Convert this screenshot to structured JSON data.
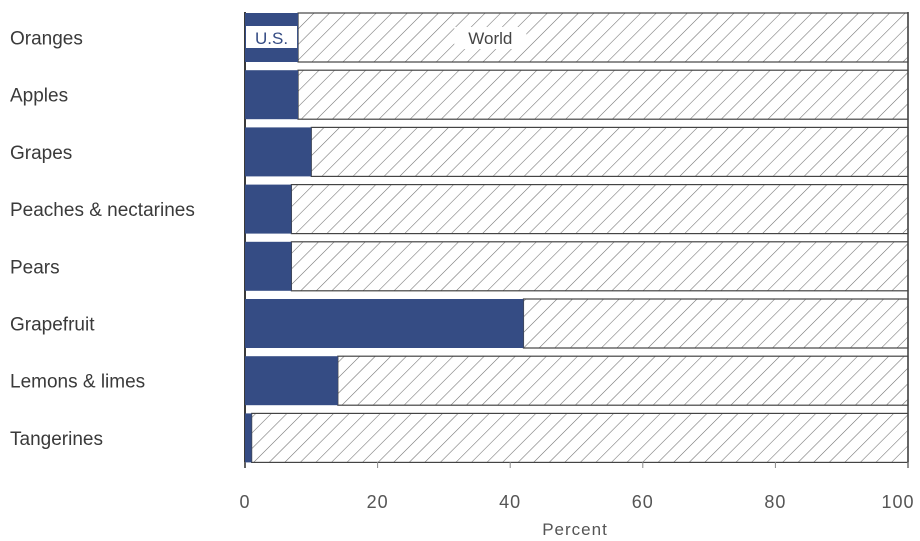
{
  "chart_data": {
    "type": "bar",
    "orientation": "horizontal",
    "stacked": true,
    "categories": [
      "Oranges",
      "Apples",
      "Grapes",
      "Peaches & nectarines",
      "Pears",
      "Grapefruit",
      "Lemons & limes",
      "Tangerines"
    ],
    "series": [
      {
        "name": "U.S.",
        "values": [
          8,
          8,
          10,
          7,
          7,
          42,
          14,
          1
        ],
        "color": "#354c84"
      },
      {
        "name": "World",
        "values": [
          92,
          92,
          90,
          93,
          93,
          58,
          86,
          99
        ],
        "color": "#ffffff",
        "pattern": "diagonal-hatch"
      }
    ],
    "xlabel": "Percent",
    "xlim": [
      0,
      100
    ],
    "xticks": [
      0,
      20,
      40,
      60,
      80,
      100
    ],
    "grid": false
  }
}
